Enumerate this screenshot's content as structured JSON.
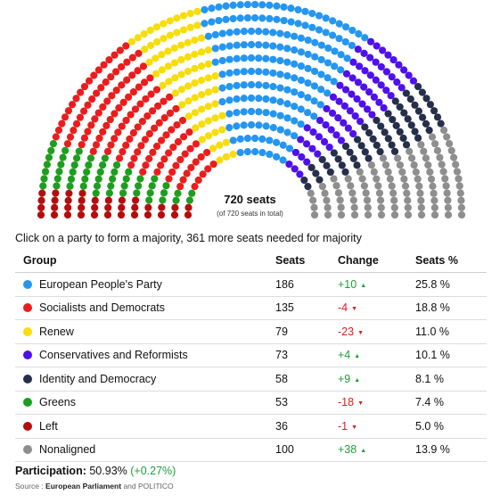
{
  "chart_data": {
    "type": "hemicycle",
    "total_seats": 720,
    "center_label": "720 seats",
    "center_sublabel": "(of 720 seats in total)",
    "series": [
      {
        "name": "Left",
        "seats": 36,
        "color": "#b50d0d"
      },
      {
        "name": "Greens",
        "seats": 53,
        "color": "#1e9e1e"
      },
      {
        "name": "Socialists and Democrats",
        "seats": 135,
        "color": "#ea1d1d"
      },
      {
        "name": "Renew",
        "seats": 79,
        "color": "#f7dd0a"
      },
      {
        "name": "European People's Party",
        "seats": 186,
        "color": "#2596f0"
      },
      {
        "name": "Conservatives and Reformists",
        "seats": 73,
        "color": "#4f10ea"
      },
      {
        "name": "Identity and Democracy",
        "seats": 58,
        "color": "#252f4a"
      },
      {
        "name": "Nonaligned",
        "seats": 100,
        "color": "#8e8e8e"
      }
    ]
  },
  "instruction": "Click on a party to form a majority, 361 more seats needed for majority",
  "table": {
    "headers": {
      "group": "Group",
      "seats": "Seats",
      "change": "Change",
      "pct": "Seats %"
    },
    "rows": [
      {
        "group": "European People's Party",
        "color": "#2596f0",
        "seats": "186",
        "change": "+10",
        "direction": "up",
        "pct": "25.8 %"
      },
      {
        "group": "Socialists and Democrats",
        "color": "#ea1d1d",
        "seats": "135",
        "change": "-4",
        "direction": "down",
        "pct": "18.8 %"
      },
      {
        "group": "Renew",
        "color": "#f7dd0a",
        "seats": "79",
        "change": "-23",
        "direction": "down",
        "pct": "11.0 %"
      },
      {
        "group": "Conservatives and Reformists",
        "color": "#4f10ea",
        "seats": "73",
        "change": "+4",
        "direction": "up",
        "pct": "10.1 %"
      },
      {
        "group": "Identity and Democracy",
        "color": "#252f4a",
        "seats": "58",
        "change": "+9",
        "direction": "up",
        "pct": "8.1 %"
      },
      {
        "group": "Greens",
        "color": "#1e9e1e",
        "seats": "53",
        "change": "-18",
        "direction": "down",
        "pct": "7.4 %"
      },
      {
        "group": "Left",
        "color": "#b50d0d",
        "seats": "36",
        "change": "-1",
        "direction": "down",
        "pct": "5.0 %"
      },
      {
        "group": "Nonaligned",
        "color": "#8e8e8e",
        "seats": "100",
        "change": "+38",
        "direction": "up",
        "pct": "13.9 %"
      }
    ]
  },
  "participation": {
    "label": "Participation:",
    "value": "50.93%",
    "change": "(+0.27%)"
  },
  "source": {
    "prefix": "Source :",
    "main": "European Parliament",
    "join": "and",
    "extra": "POLITICO"
  }
}
